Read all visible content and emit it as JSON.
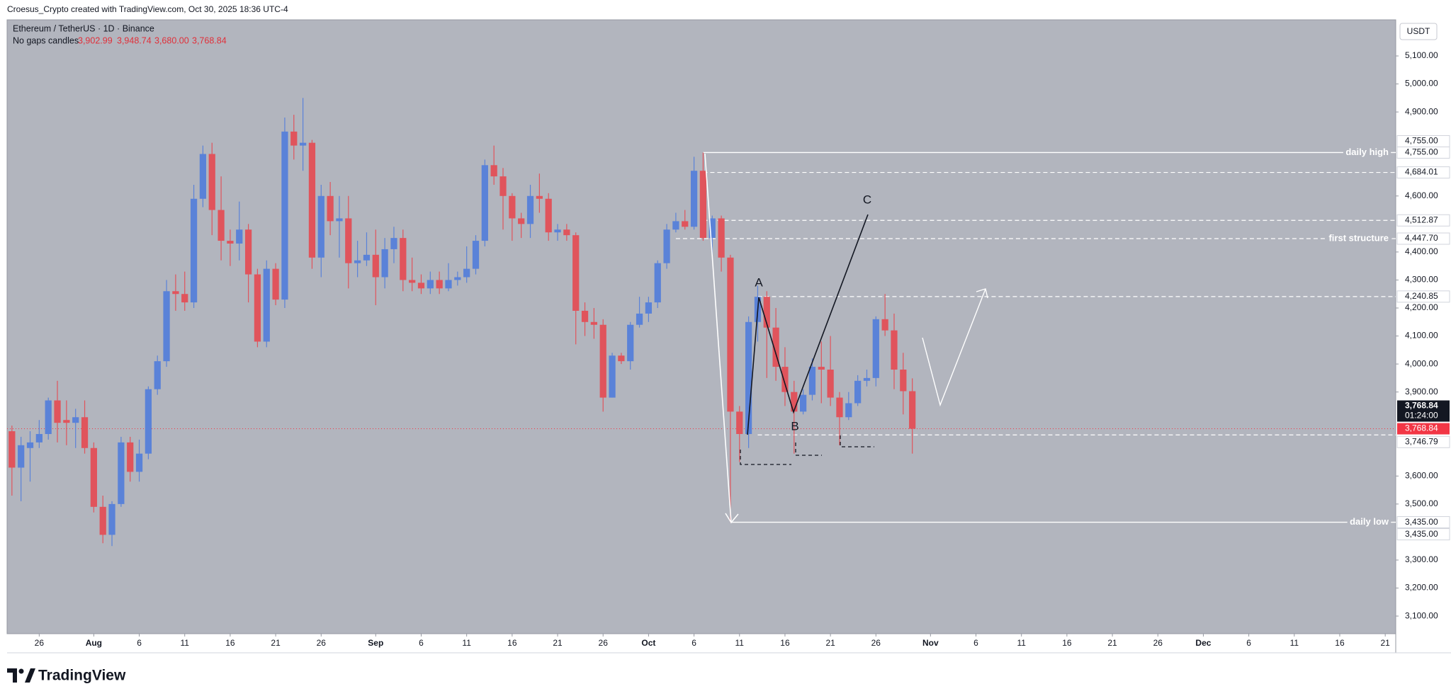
{
  "header": {
    "credit": "Croesus_Crypto created with TradingView.com, Oct 30, 2025 18:36 UTC-4",
    "brand": "TradingView"
  },
  "chart_data": {
    "type": "candlestick",
    "title": "Ethereum / TetherUS · 1D · Binance",
    "subtitle": "No gaps candles",
    "ohlc_labels": [
      "3,902.99",
      "3,948.74",
      "3,680.00",
      "3,768.84"
    ],
    "currency": "USDT",
    "up_color": "#5a82d8",
    "down_color": "#e0545c",
    "level_color": "#ffffff",
    "grid": false,
    "x": [
      "2025-07-23",
      "2025-07-24",
      "2025-07-25",
      "2025-07-26",
      "2025-07-27",
      "2025-07-28",
      "2025-07-29",
      "2025-07-30",
      "2025-07-31",
      "2025-08-01",
      "2025-08-02",
      "2025-08-03",
      "2025-08-04",
      "2025-08-05",
      "2025-08-06",
      "2025-08-07",
      "2025-08-08",
      "2025-08-09",
      "2025-08-10",
      "2025-08-11",
      "2025-08-12",
      "2025-08-13",
      "2025-08-14",
      "2025-08-15",
      "2025-08-16",
      "2025-08-17",
      "2025-08-18",
      "2025-08-19",
      "2025-08-20",
      "2025-08-21",
      "2025-08-22",
      "2025-08-23",
      "2025-08-24",
      "2025-08-25",
      "2025-08-26",
      "2025-08-27",
      "2025-08-28",
      "2025-08-29",
      "2025-08-30",
      "2025-08-31",
      "2025-09-01",
      "2025-09-02",
      "2025-09-03",
      "2025-09-04",
      "2025-09-05",
      "2025-09-06",
      "2025-09-07",
      "2025-09-08",
      "2025-09-09",
      "2025-09-10",
      "2025-09-11",
      "2025-09-12",
      "2025-09-13",
      "2025-09-14",
      "2025-09-15",
      "2025-09-16",
      "2025-09-17",
      "2025-09-18",
      "2025-09-19",
      "2025-09-20",
      "2025-09-21",
      "2025-09-22",
      "2025-09-23",
      "2025-09-24",
      "2025-09-25",
      "2025-09-26",
      "2025-09-27",
      "2025-09-28",
      "2025-09-29",
      "2025-09-30",
      "2025-10-01",
      "2025-10-02",
      "2025-10-03",
      "2025-10-04",
      "2025-10-05",
      "2025-10-06",
      "2025-10-07",
      "2025-10-08",
      "2025-10-09",
      "2025-10-10",
      "2025-10-11",
      "2025-10-12",
      "2025-10-13",
      "2025-10-14",
      "2025-10-15",
      "2025-10-16",
      "2025-10-17",
      "2025-10-18",
      "2025-10-19",
      "2025-10-20",
      "2025-10-21",
      "2025-10-22",
      "2025-10-23",
      "2025-10-24",
      "2025-10-25",
      "2025-10-26",
      "2025-10-27",
      "2025-10-28",
      "2025-10-29",
      "2025-10-30"
    ],
    "open": [
      3760,
      3630,
      3700,
      3720,
      3750,
      3870,
      3800,
      3790,
      3810,
      3700,
      3490,
      3390,
      3500,
      3720,
      3615,
      3680,
      3910,
      4010,
      4260,
      4250,
      4220,
      4590,
      4750,
      4550,
      4440,
      4430,
      4480,
      4320,
      4080,
      4340,
      4230,
      4830,
      4780,
      4790,
      4380,
      4600,
      4510,
      4520,
      4360,
      4370,
      4390,
      4310,
      4410,
      4450,
      4300,
      4290,
      4270,
      4300,
      4270,
      4300,
      4310,
      4340,
      4440,
      4710,
      4670,
      4600,
      4520,
      4500,
      4600,
      4590,
      4470,
      4480,
      4460,
      4190,
      4150,
      4140,
      3880,
      4030,
      4010,
      4140,
      4180,
      4220,
      4360,
      4480,
      4510,
      4490,
      4690,
      4450,
      4520,
      4380,
      3830,
      3750,
      4150,
      4240,
      4130,
      3990,
      3900,
      3830,
      3890,
      3990,
      3980,
      3880,
      3810,
      3860,
      3940,
      3950,
      4160,
      4120,
      3980,
      3902.99
    ],
    "high": [
      3780,
      3740,
      3760,
      3800,
      3880,
      3940,
      3870,
      3840,
      3870,
      3720,
      3530,
      3510,
      3740,
      3740,
      3730,
      3920,
      4030,
      4300,
      4320,
      4330,
      4640,
      4780,
      4790,
      4670,
      4480,
      4580,
      4500,
      4340,
      4370,
      4360,
      4880,
      4890,
      4950,
      4800,
      4640,
      4650,
      4600,
      4600,
      4440,
      4470,
      4480,
      4450,
      4490,
      4480,
      4380,
      4320,
      4330,
      4330,
      4360,
      4330,
      4420,
      4460,
      4730,
      4780,
      4700,
      4610,
      4540,
      4640,
      4680,
      4610,
      4500,
      4500,
      4470,
      4220,
      4200,
      4160,
      4040,
      4040,
      4150,
      4240,
      4240,
      4370,
      4500,
      4540,
      4550,
      4740,
      4755,
      4530,
      4530,
      4390,
      3850,
      4170,
      4280,
      4260,
      4200,
      4060,
      3940,
      3910,
      4020,
      4080,
      4100,
      3900,
      3900,
      3960,
      3980,
      4170,
      4250,
      4180,
      4040,
      3948.74
    ],
    "low": [
      3530,
      3510,
      3580,
      3700,
      3730,
      3720,
      3710,
      3700,
      3680,
      3470,
      3360,
      3350,
      3490,
      3580,
      3580,
      3660,
      3890,
      3990,
      4190,
      4190,
      4200,
      4560,
      4460,
      4370,
      4350,
      4370,
      4220,
      4060,
      4060,
      4210,
      4200,
      4730,
      4690,
      4340,
      4310,
      4460,
      4380,
      4270,
      4310,
      4350,
      4210,
      4270,
      4360,
      4260,
      4260,
      4250,
      4250,
      4250,
      4260,
      4280,
      4290,
      4320,
      4420,
      4640,
      4480,
      4440,
      4450,
      4450,
      4540,
      4440,
      4440,
      4440,
      4070,
      4100,
      4090,
      3830,
      3880,
      4000,
      3980,
      4130,
      4150,
      4200,
      4340,
      4470,
      4480,
      4480,
      4440,
      4380,
      4330,
      3435,
      3650,
      3700,
      4080,
      3950,
      3940,
      3850,
      3680,
      3820,
      3870,
      3860,
      3850,
      3710,
      3800,
      3850,
      3920,
      3920,
      4100,
      3910,
      3820,
      3680
    ],
    "close": [
      3630,
      3710,
      3720,
      3750,
      3870,
      3790,
      3790,
      3810,
      3700,
      3490,
      3390,
      3500,
      3720,
      3615,
      3680,
      3910,
      4010,
      4260,
      4250,
      4220,
      4590,
      4750,
      4550,
      4440,
      4430,
      4480,
      4320,
      4080,
      4340,
      4230,
      4830,
      4780,
      4790,
      4380,
      4600,
      4510,
      4520,
      4360,
      4370,
      4390,
      4310,
      4410,
      4450,
      4300,
      4290,
      4270,
      4300,
      4270,
      4300,
      4310,
      4340,
      4440,
      4710,
      4670,
      4600,
      4520,
      4500,
      4600,
      4590,
      4470,
      4480,
      4460,
      4190,
      4150,
      4140,
      3880,
      4030,
      4010,
      4140,
      4180,
      4220,
      4360,
      4480,
      4510,
      4490,
      4690,
      4450,
      4520,
      4380,
      3830,
      3750,
      4150,
      4240,
      4130,
      3990,
      3900,
      3830,
      3890,
      3990,
      3980,
      3880,
      3810,
      3860,
      3940,
      3950,
      4160,
      4120,
      3980,
      3902.99,
      3768.84
    ],
    "xlim": [
      "2025-07-22",
      "2025-12-22"
    ],
    "xticks": [
      {
        "value": "2025-07-26",
        "label": "26"
      },
      {
        "value": "2025-08-01",
        "label": "Aug"
      },
      {
        "value": "2025-08-06",
        "label": "6"
      },
      {
        "value": "2025-08-11",
        "label": "11"
      },
      {
        "value": "2025-08-16",
        "label": "16"
      },
      {
        "value": "2025-08-21",
        "label": "21"
      },
      {
        "value": "2025-08-26",
        "label": "26"
      },
      {
        "value": "2025-09-01",
        "label": "Sep"
      },
      {
        "value": "2025-09-06",
        "label": "6"
      },
      {
        "value": "2025-09-11",
        "label": "11"
      },
      {
        "value": "2025-09-16",
        "label": "16"
      },
      {
        "value": "2025-09-21",
        "label": "21"
      },
      {
        "value": "2025-09-26",
        "label": "26"
      },
      {
        "value": "2025-10-01",
        "label": "Oct"
      },
      {
        "value": "2025-10-06",
        "label": "6"
      },
      {
        "value": "2025-10-11",
        "label": "11"
      },
      {
        "value": "2025-10-16",
        "label": "16"
      },
      {
        "value": "2025-10-21",
        "label": "21"
      },
      {
        "value": "2025-10-26",
        "label": "26"
      },
      {
        "value": "2025-11-01",
        "label": "Nov"
      },
      {
        "value": "2025-11-06",
        "label": "6"
      },
      {
        "value": "2025-11-11",
        "label": "11"
      },
      {
        "value": "2025-11-16",
        "label": "16"
      },
      {
        "value": "2025-11-21",
        "label": "21"
      },
      {
        "value": "2025-11-26",
        "label": "26"
      },
      {
        "value": "2025-12-01",
        "label": "Dec"
      },
      {
        "value": "2025-12-06",
        "label": "6"
      },
      {
        "value": "2025-12-11",
        "label": "11"
      },
      {
        "value": "2025-12-16",
        "label": "16"
      },
      {
        "value": "2025-12-21",
        "label": "21"
      }
    ],
    "ylim": [
      3037,
      5229
    ],
    "yticks": [
      {
        "value": 5100,
        "label": "5,100.00"
      },
      {
        "value": 5000,
        "label": "5,000.00"
      },
      {
        "value": 4900,
        "label": "4,900.00"
      },
      {
        "value": 4600,
        "label": "4,600.00"
      },
      {
        "value": 4400,
        "label": "4,400.00"
      },
      {
        "value": 4300,
        "label": "4,300.00"
      },
      {
        "value": 4200,
        "label": "4,200.00"
      },
      {
        "value": 4100,
        "label": "4,100.00"
      },
      {
        "value": 4000,
        "label": "4,000.00"
      },
      {
        "value": 3900,
        "label": "3,900.00"
      },
      {
        "value": 3600,
        "label": "3,600.00"
      },
      {
        "value": 3500,
        "label": "3,500.00"
      },
      {
        "value": 3300,
        "label": "3,300.00"
      },
      {
        "value": 3200,
        "label": "3,200.00"
      },
      {
        "value": 3100,
        "label": "3,100.00"
      }
    ],
    "last_price": {
      "value": 3768.84,
      "label": "3,768.84",
      "countdown": "01:24:00",
      "color": "#f23645"
    },
    "levels": [
      {
        "value": 4755,
        "label": "daily high",
        "style": "solid",
        "from": "2025-10-07"
      },
      {
        "value": 4684.01,
        "style": "dashed",
        "from": "2025-10-07"
      },
      {
        "value": 4512.87,
        "style": "dashed",
        "from": "2025-10-07"
      },
      {
        "value": 4447.7,
        "label": "first structure",
        "style": "dashed",
        "from": "2025-10-04"
      },
      {
        "value": 4240.85,
        "style": "dashed",
        "from": "2025-10-13"
      },
      {
        "value": 3746.79,
        "style": "dashed",
        "from": "2025-10-13"
      },
      {
        "value": 3435,
        "label": "daily low",
        "style": "solid",
        "from": "2025-10-10"
      }
    ],
    "axis_labels": [
      {
        "value": 4755,
        "label": "4,755.00"
      },
      {
        "value": 4755,
        "label": "4,755.00"
      },
      {
        "value": 4684.01,
        "label": "4,684.01"
      },
      {
        "value": 4512.87,
        "label": "4,512.87"
      },
      {
        "value": 4447.7,
        "label": "4,447.70"
      },
      {
        "value": 4240.85,
        "label": "4,240.85"
      },
      {
        "value": 3746.79,
        "label": "3,746.79"
      },
      {
        "value": 3435,
        "label": "3,435.00"
      },
      {
        "value": 3435,
        "label": "3,435.00"
      }
    ],
    "wave_labels": [
      "A",
      "B",
      "C"
    ]
  }
}
